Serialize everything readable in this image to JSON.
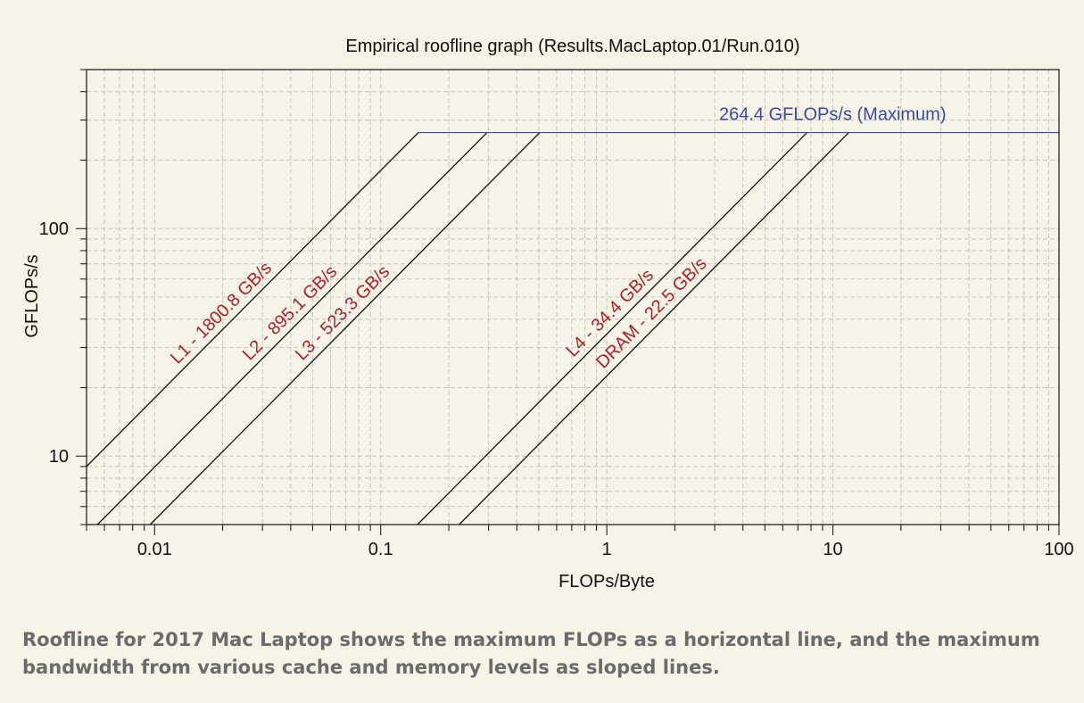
{
  "chart_data": {
    "type": "line",
    "title": "Empirical roofline graph (Results.MacLaptop.01/Run.010)",
    "xlabel": "FLOPs/Byte",
    "ylabel": "GFLOPs/s",
    "xscale": "log",
    "yscale": "log",
    "xlim": [
      0.005,
      100
    ],
    "ylim": [
      5,
      500
    ],
    "grid": true,
    "x_ticks": [
      {
        "value": 0.01,
        "label": "0.01"
      },
      {
        "value": 0.1,
        "label": "0.1"
      },
      {
        "value": 1,
        "label": "1"
      },
      {
        "value": 10,
        "label": "10"
      },
      {
        "value": 100,
        "label": "100"
      }
    ],
    "y_ticks": [
      {
        "value": 10,
        "label": "10"
      },
      {
        "value": 100,
        "label": "100"
      }
    ],
    "peak": {
      "value": 264.4,
      "label": "264.4 GFLOPs/s (Maximum)",
      "color": "#3b4aa0"
    },
    "series": [
      {
        "name": "L1 - 1800.8 GB/s",
        "bandwidth": 1800.8
      },
      {
        "name": "L2 - 895.1 GB/s",
        "bandwidth": 895.1
      },
      {
        "name": "L3 - 523.3 GB/s",
        "bandwidth": 523.3
      },
      {
        "name": "L4 - 34.4 GB/s",
        "bandwidth": 34.4
      },
      {
        "name": "DRAM - 22.5 GB/s",
        "bandwidth": 22.5
      }
    ],
    "label_color": "#a8232c",
    "line_color": "#111111",
    "grid_color": "#c4c4c4",
    "background": "#f6f3e7"
  },
  "caption": "Roofline for 2017 Mac Laptop shows the maximum FLOPs as a horizontal line, and the maximum bandwidth from various cache and memory levels as sloped lines."
}
